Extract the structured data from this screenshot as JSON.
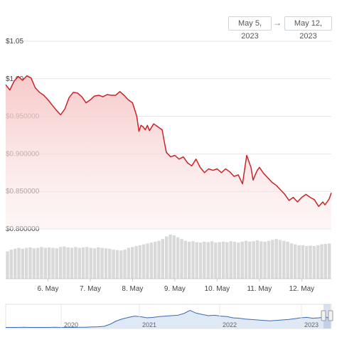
{
  "date_range": {
    "start": "May 5, 2023",
    "arrow": "→",
    "end": "May 12, 2023"
  },
  "colors": {
    "price_line": "#cc2229",
    "fill_top": "#f7c9c9",
    "volume": "#d9d9d9",
    "navigator_line": "#3c6ab0"
  },
  "chart_data": {
    "type": "line",
    "title": "",
    "xlabel": "",
    "ylabel": "",
    "x_tick_labels": [
      "6. May",
      "7. May",
      "8. May",
      "9. May",
      "10. May",
      "11. May",
      "12. May"
    ],
    "y_tick_labels": [
      "$1.05",
      "$1.00",
      "$0.950000",
      "$0.900000",
      "$0.850000",
      "$0.800000"
    ],
    "y_ticks": [
      1.05,
      1.0,
      0.95,
      0.9,
      0.85,
      0.8
    ],
    "ylim": [
      0.8,
      1.05
    ],
    "xlim": [
      5.0,
      12.7
    ],
    "grid": true,
    "series": [
      {
        "x": [
          5.0,
          5.1,
          5.2,
          5.3,
          5.4,
          5.5,
          5.6,
          5.7,
          5.8,
          5.9,
          6.0,
          6.1,
          6.2,
          6.3,
          6.4,
          6.5,
          6.6,
          6.7,
          6.8,
          6.9,
          7.0,
          7.1,
          7.2,
          7.3,
          7.4,
          7.5,
          7.6,
          7.7,
          7.8,
          7.9,
          8.0,
          8.1,
          8.15,
          8.2,
          8.25,
          8.3,
          8.35,
          8.4,
          8.5,
          8.6,
          8.7,
          8.75,
          8.8,
          8.9,
          9.0,
          9.1,
          9.2,
          9.3,
          9.4,
          9.5,
          9.6,
          9.7,
          9.8,
          9.9,
          10.0,
          10.1,
          10.2,
          10.3,
          10.4,
          10.5,
          10.6,
          10.7,
          10.8,
          10.85,
          10.9,
          10.95,
          11.0,
          11.1,
          11.2,
          11.3,
          11.4,
          11.5,
          11.6,
          11.7,
          11.8,
          11.9,
          12.0,
          12.1,
          12.2,
          12.3,
          12.4,
          12.5,
          12.55,
          12.6,
          12.65,
          12.7
        ],
        "y": [
          0.992,
          0.985,
          0.997,
          1.003,
          0.998,
          1.004,
          1.001,
          0.988,
          0.982,
          0.978,
          0.972,
          0.965,
          0.958,
          0.952,
          0.96,
          0.975,
          0.982,
          0.981,
          0.976,
          0.968,
          0.972,
          0.977,
          0.978,
          0.976,
          0.979,
          0.978,
          0.978,
          0.983,
          0.978,
          0.972,
          0.968,
          0.95,
          0.93,
          0.938,
          0.936,
          0.932,
          0.938,
          0.931,
          0.94,
          0.936,
          0.932,
          0.916,
          0.902,
          0.896,
          0.898,
          0.893,
          0.896,
          0.888,
          0.884,
          0.893,
          0.882,
          0.875,
          0.88,
          0.878,
          0.88,
          0.875,
          0.88,
          0.876,
          0.87,
          0.872,
          0.86,
          0.898,
          0.882,
          0.865,
          0.872,
          0.878,
          0.882,
          0.874,
          0.868,
          0.862,
          0.858,
          0.852,
          0.846,
          0.838,
          0.842,
          0.836,
          0.842,
          0.846,
          0.842,
          0.839,
          0.83,
          0.836,
          0.832,
          0.836,
          0.84,
          0.848
        ]
      }
    ],
    "volume_series": {
      "values": [
        0.62,
        0.66,
        0.68,
        0.7,
        0.68,
        0.7,
        0.71,
        0.69,
        0.7,
        0.72,
        0.7,
        0.71,
        0.7,
        0.69,
        0.72,
        0.73,
        0.71,
        0.7,
        0.72,
        0.7,
        0.71,
        0.72,
        0.7,
        0.69,
        0.71,
        0.7,
        0.69,
        0.68,
        0.66,
        0.65,
        0.64,
        0.66,
        0.7,
        0.72,
        0.74,
        0.76,
        0.78,
        0.8,
        0.82,
        0.84,
        0.86,
        0.9,
        0.96,
        1.0,
        0.98,
        0.94,
        0.9,
        0.86,
        0.84,
        0.85,
        0.83,
        0.82,
        0.84,
        0.83,
        0.85,
        0.82,
        0.83,
        0.84,
        0.83,
        0.85,
        0.84,
        0.82,
        0.84,
        0.86,
        0.84,
        0.85,
        0.87,
        0.85,
        0.84,
        0.86,
        0.88,
        0.9,
        0.88,
        0.86,
        0.84,
        0.8,
        0.78,
        0.76,
        0.76,
        0.74,
        0.75,
        0.74,
        0.76,
        0.78,
        0.79,
        0.8
      ]
    },
    "navigator": {
      "labels": [
        "2020",
        "2021",
        "2022",
        "2023"
      ],
      "values": [
        0.05,
        0.05,
        0.05,
        0.06,
        0.05,
        0.05,
        0.05,
        0.05,
        0.06,
        0.05,
        0.05,
        0.05,
        0.06,
        0.06,
        0.07,
        0.08,
        0.1,
        0.2,
        0.35,
        0.45,
        0.52,
        0.58,
        0.55,
        0.5,
        0.52,
        0.56,
        0.58,
        0.6,
        0.62,
        0.7,
        0.85,
        0.72,
        0.66,
        0.6,
        0.62,
        0.58,
        0.56,
        0.5,
        0.48,
        0.44,
        0.42,
        0.4,
        0.38,
        0.36,
        0.38,
        0.4,
        0.42,
        0.46,
        0.5,
        0.52,
        0.48,
        0.5,
        0.54,
        0.46
      ]
    }
  }
}
